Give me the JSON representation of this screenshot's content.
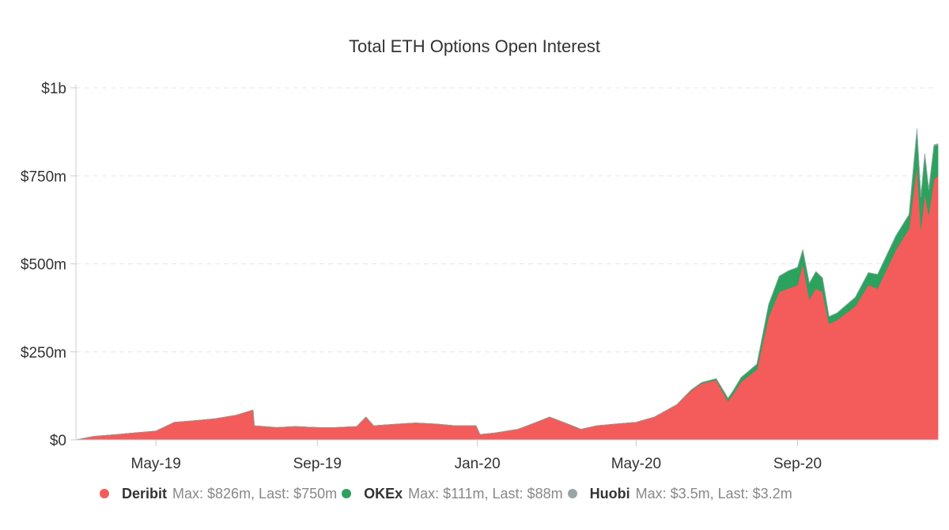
{
  "chart_data": {
    "type": "area",
    "stacked": true,
    "title": "Total ETH Options Open Interest",
    "xlabel": "",
    "ylabel": "",
    "x_ticks": [
      "May-19",
      "Sep-19",
      "Jan-20",
      "May-20",
      "Sep-20"
    ],
    "y_ticks": [
      "$0",
      "$250m",
      "$500m",
      "$750m",
      "$1b"
    ],
    "ylim": [
      0,
      1000
    ],
    "y_unit": "$m",
    "grid": true,
    "legend_position": "bottom",
    "x": [
      "2019-03-01",
      "2019-03-15",
      "2019-04-01",
      "2019-04-15",
      "2019-05-01",
      "2019-05-15",
      "2019-06-01",
      "2019-06-15",
      "2019-07-01",
      "2019-07-14",
      "2019-07-15",
      "2019-08-01",
      "2019-08-15",
      "2019-09-01",
      "2019-09-15",
      "2019-10-01",
      "2019-10-08",
      "2019-10-14",
      "2019-11-01",
      "2019-11-15",
      "2019-12-01",
      "2019-12-15",
      "2019-12-31",
      "2020-01-03",
      "2020-01-15",
      "2020-02-01",
      "2020-02-15",
      "2020-02-25",
      "2020-03-10",
      "2020-03-20",
      "2020-04-01",
      "2020-04-15",
      "2020-05-01",
      "2020-05-15",
      "2020-06-01",
      "2020-06-12",
      "2020-06-20",
      "2020-07-01",
      "2020-07-10",
      "2020-07-14",
      "2020-07-20",
      "2020-08-01",
      "2020-08-10",
      "2020-08-18",
      "2020-08-25",
      "2020-09-01",
      "2020-09-05",
      "2020-09-10",
      "2020-09-15",
      "2020-09-20",
      "2020-09-25",
      "2020-10-01",
      "2020-10-15",
      "2020-10-25",
      "2020-11-01",
      "2020-11-15",
      "2020-11-25",
      "2020-12-01",
      "2020-12-04",
      "2020-12-07",
      "2020-12-10",
      "2020-12-14",
      "2020-12-17"
    ],
    "series": [
      {
        "name": "Deribit",
        "color": "#f45b5b",
        "values": [
          0,
          10,
          15,
          20,
          25,
          50,
          55,
          60,
          70,
          85,
          40,
          35,
          38,
          35,
          35,
          38,
          65,
          40,
          45,
          48,
          45,
          40,
          40,
          15,
          20,
          30,
          50,
          65,
          45,
          30,
          40,
          45,
          50,
          65,
          100,
          140,
          160,
          170,
          110,
          130,
          165,
          200,
          350,
          420,
          430,
          440,
          500,
          400,
          430,
          420,
          330,
          340,
          380,
          440,
          430,
          540,
          600,
          780,
          600,
          700,
          640,
          740,
          750
        ]
      },
      {
        "name": "OKEx",
        "color": "#2ca25f",
        "values": [
          0,
          0,
          0,
          0,
          0,
          0,
          0,
          0,
          0,
          0,
          0,
          0,
          0,
          0,
          0,
          0,
          0,
          0,
          0,
          0,
          0,
          0,
          0,
          0,
          0,
          0,
          0,
          0,
          0,
          0,
          0,
          0,
          0,
          0,
          0,
          2,
          3,
          4,
          8,
          10,
          12,
          15,
          35,
          45,
          50,
          50,
          40,
          45,
          48,
          40,
          20,
          20,
          25,
          35,
          40,
          40,
          40,
          100,
          90,
          110,
          70,
          95,
          88
        ]
      },
      {
        "name": "Huobi",
        "color": "#9aa5a5",
        "values": [
          0,
          0,
          0,
          0,
          0,
          0,
          0,
          0,
          0,
          0,
          0,
          0,
          0,
          0,
          0,
          0,
          0,
          0,
          0,
          0,
          0,
          0,
          0,
          0,
          0,
          0,
          0,
          0,
          0,
          0,
          0,
          0,
          0,
          0,
          0,
          0,
          0,
          0,
          0,
          0,
          0,
          0,
          0,
          0,
          0,
          0,
          0,
          0,
          0,
          0,
          0,
          0,
          0,
          0,
          0,
          0,
          0,
          3.5,
          3,
          3.5,
          3,
          3.3,
          3.2
        ]
      }
    ],
    "legend": [
      {
        "name": "Deribit",
        "stats": "Max: $826m, Last: $750m",
        "color": "#f45b5b"
      },
      {
        "name": "OKEx",
        "stats": "Max: $111m, Last: $88m",
        "color": "#2ca25f"
      },
      {
        "name": "Huobi",
        "stats": "Max: $3.5m, Last: $3.2m",
        "color": "#9aa5a5"
      }
    ]
  }
}
